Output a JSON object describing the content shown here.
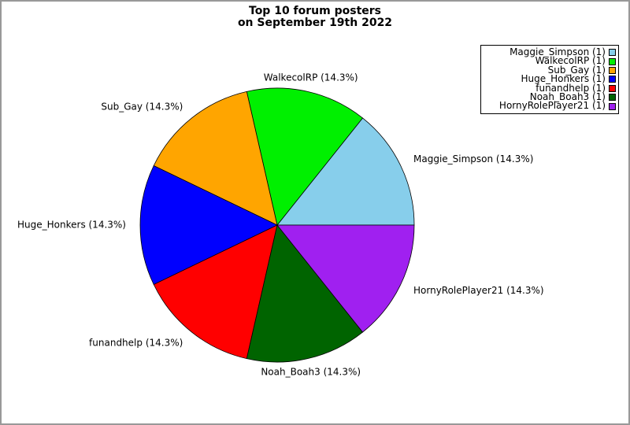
{
  "title": {
    "line1": "Top 10 forum posters",
    "line2": "on September 19th 2022"
  },
  "chart_data": {
    "type": "pie",
    "title": "Top 10 forum posters on September 19th 2022",
    "start_angle_deg": 0,
    "direction": "counterclockwise",
    "legend_position": "top-right",
    "slices": [
      {
        "label": "Maggie_Simpson",
        "value": 1,
        "pct": 14.3,
        "display": "Maggie_Simpson (14.3%)",
        "legend_label": "Maggie_Simpson (1)",
        "color": "#87CEEB"
      },
      {
        "label": "WalkecolRP",
        "value": 1,
        "pct": 14.3,
        "display": "WalkecolRP (14.3%)",
        "legend_label": "WalkecolRP (1)",
        "color": "#00F000"
      },
      {
        "label": "Sub_Gay",
        "value": 1,
        "pct": 14.3,
        "display": "Sub_Gay (14.3%)",
        "legend_label": "Sub_Gay (1)",
        "color": "#FFA500"
      },
      {
        "label": "Huge_Honkers",
        "value": 1,
        "pct": 14.3,
        "display": "Huge_Honkers (14.3%)",
        "legend_label": "Huge_Honkers (1)",
        "color": "#0000FF"
      },
      {
        "label": "funandhelp",
        "value": 1,
        "pct": 14.3,
        "display": "funandhelp (14.3%)",
        "legend_label": "funandhelp (1)",
        "color": "#FF0000"
      },
      {
        "label": "Noah_Boah3",
        "value": 1,
        "pct": 14.3,
        "display": "Noah_Boah3 (14.3%)",
        "legend_label": "Noah_Boah3 (1)",
        "color": "#006400"
      },
      {
        "label": "HornyRolePlayer21",
        "value": 1,
        "pct": 14.3,
        "display": "HornyRolePlayer21 (14.3%)",
        "legend_label": "HornyRolePlayer21 (1)",
        "color": "#A020F0"
      }
    ],
    "colors": {
      "wedge_edge": "#000000",
      "figure_border": "#999999",
      "legend_border": "#000000",
      "background": "#FFFFFF"
    }
  }
}
